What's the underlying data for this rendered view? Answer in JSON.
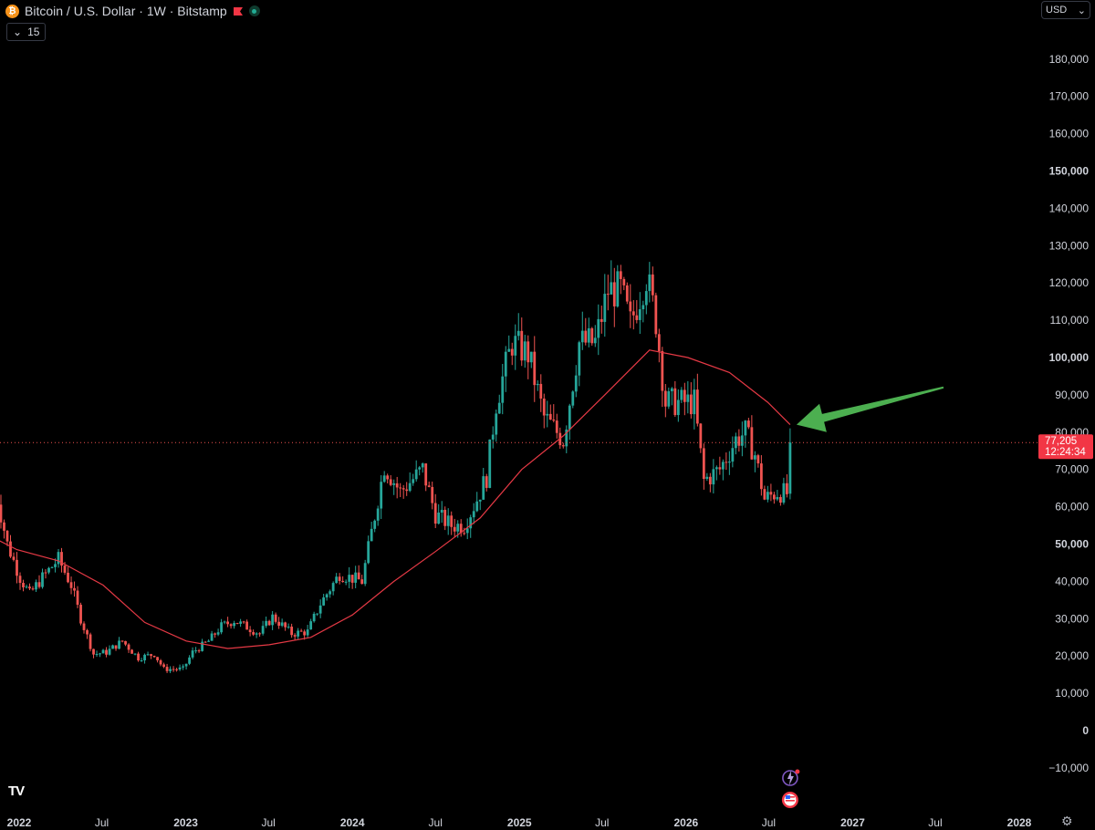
{
  "header": {
    "symbol_title": "Bitcoin / U.S. Dollar · 1W · Bitstamp",
    "icon": "bitcoin-icon",
    "icon_glyph": "₿",
    "flag_icon": "red-flag-icon",
    "status_icon": "market-status-dot-icon"
  },
  "indicator_toggle": {
    "icon": "chevron-down-icon",
    "glyph": "⌄",
    "value": "15"
  },
  "currency_selector": {
    "value": "USD",
    "icon": "chevron-down-icon",
    "glyph": "⌄"
  },
  "price_label": {
    "price": "77,205",
    "countdown": "12:24:34"
  },
  "logo": {
    "icon": "tradingview-logo-icon",
    "text": "TV"
  },
  "settings": {
    "icon": "gear-icon",
    "glyph": "⚙"
  },
  "colors": {
    "background": "#000000",
    "up_candle": "#26a69a",
    "down_candle": "#ef5350",
    "moving_average": "#e53945",
    "price_line": "#ef5350",
    "price_label_bg": "#f23645",
    "axis_text": "#d1d4dc",
    "arrow": "#4caf50",
    "bitcoin_icon": "#f7931a"
  },
  "chart_data": {
    "type": "candlestick",
    "ylim": [
      -15000,
      190000
    ],
    "y_ticks": [
      {
        "value": 180000,
        "label": "180,000"
      },
      {
        "value": 170000,
        "label": "170,000"
      },
      {
        "value": 160000,
        "label": "160,000"
      },
      {
        "value": 150000,
        "label": "150,000",
        "bold": true
      },
      {
        "value": 140000,
        "label": "140,000"
      },
      {
        "value": 130000,
        "label": "130,000"
      },
      {
        "value": 120000,
        "label": "120,000"
      },
      {
        "value": 110000,
        "label": "110,000"
      },
      {
        "value": 100000,
        "label": "100,000",
        "bold": true
      },
      {
        "value": 90000,
        "label": "90,000"
      },
      {
        "value": 80000,
        "label": "80,000"
      },
      {
        "value": 70000,
        "label": "70,000"
      },
      {
        "value": 60000,
        "label": "60,000"
      },
      {
        "value": 50000,
        "label": "50,000",
        "bold": true
      },
      {
        "value": 40000,
        "label": "40,000"
      },
      {
        "value": 30000,
        "label": "30,000"
      },
      {
        "value": 20000,
        "label": "20,000"
      },
      {
        "value": 10000,
        "label": "10,000"
      },
      {
        "value": 0,
        "label": "0",
        "bold": true
      },
      {
        "value": -10000,
        "label": "−10,000"
      }
    ],
    "x_ticks": [
      {
        "date": "2022-01-01",
        "label": "2022",
        "bold": true
      },
      {
        "date": "2022-07-01",
        "label": "Jul"
      },
      {
        "date": "2023-01-01",
        "label": "2023",
        "bold": true
      },
      {
        "date": "2023-07-01",
        "label": "Jul"
      },
      {
        "date": "2024-01-01",
        "label": "2024",
        "bold": true
      },
      {
        "date": "2024-07-01",
        "label": "Jul"
      },
      {
        "date": "2025-01-01",
        "label": "2025",
        "bold": true
      },
      {
        "date": "2025-07-01",
        "label": "Jul"
      },
      {
        "date": "2026-01-01",
        "label": "2026",
        "bold": true
      },
      {
        "date": "2026-07-01",
        "label": "Jul"
      },
      {
        "date": "2027-01-01",
        "label": "2027",
        "bold": true
      },
      {
        "date": "2027-07-01",
        "label": "Jul"
      },
      {
        "date": "2028-01-01",
        "label": "2028",
        "bold": true
      }
    ],
    "last_price": 77205,
    "price_path": [
      [
        "2021-11-08",
        66000
      ],
      [
        "2021-12-06",
        50000
      ],
      [
        "2022-01-03",
        41000
      ],
      [
        "2022-01-24",
        36500
      ],
      [
        "2022-02-14",
        40000
      ],
      [
        "2022-03-28",
        46000
      ],
      [
        "2022-04-25",
        39000
      ],
      [
        "2022-05-16",
        30000
      ],
      [
        "2022-06-13",
        20500
      ],
      [
        "2022-07-11",
        21000
      ],
      [
        "2022-08-15",
        24000
      ],
      [
        "2022-09-19",
        19500
      ],
      [
        "2022-10-24",
        20500
      ],
      [
        "2022-11-14",
        16500
      ],
      [
        "2022-12-26",
        16500
      ],
      [
        "2023-01-16",
        21000
      ],
      [
        "2023-02-20",
        24000
      ],
      [
        "2023-03-20",
        28000
      ],
      [
        "2023-04-17",
        29500
      ],
      [
        "2023-06-12",
        26000
      ],
      [
        "2023-07-10",
        30500
      ],
      [
        "2023-08-21",
        26000
      ],
      [
        "2023-09-25",
        26500
      ],
      [
        "2023-10-23",
        34000
      ],
      [
        "2023-12-04",
        42000
      ],
      [
        "2024-01-22",
        40000
      ],
      [
        "2024-02-26",
        62000
      ],
      [
        "2024-03-11",
        71000
      ],
      [
        "2024-04-15",
        64000
      ],
      [
        "2024-06-03",
        70000
      ],
      [
        "2024-07-01",
        58000
      ],
      [
        "2024-08-05",
        55000
      ],
      [
        "2024-09-02",
        55000
      ],
      [
        "2024-09-30",
        62000
      ],
      [
        "2024-10-21",
        68000
      ],
      [
        "2024-11-11",
        88000
      ],
      [
        "2024-12-16",
        104000
      ],
      [
        "2025-01-20",
        101000
      ],
      [
        "2025-02-24",
        84000
      ],
      [
        "2025-04-07",
        78000
      ],
      [
        "2025-05-12",
        104000
      ],
      [
        "2025-06-16",
        104000
      ],
      [
        "2025-07-14",
        118000
      ],
      [
        "2025-08-11",
        118000
      ],
      [
        "2025-09-01",
        109000
      ],
      [
        "2025-10-06",
        122000
      ],
      [
        "2025-10-27",
        110000
      ],
      [
        "2025-11-17",
        88000
      ],
      [
        "2025-12-22",
        88000
      ],
      [
        "2026-01-19",
        88000
      ],
      [
        "2026-02-09",
        67000
      ],
      [
        "2026-03-16",
        70000
      ],
      [
        "2026-04-20",
        78000
      ],
      [
        "2026-05-11",
        80000
      ],
      [
        "2026-06-01",
        74000
      ],
      [
        "2026-06-22",
        62000
      ],
      [
        "2026-07-20",
        64000
      ],
      [
        "2026-08-10",
        63500
      ],
      [
        "2026-08-17",
        77205
      ]
    ],
    "moving_average": [
      [
        "2021-11-01",
        52000
      ],
      [
        "2021-12-27",
        48500
      ],
      [
        "2022-03-28",
        45500
      ],
      [
        "2022-07-04",
        39000
      ],
      [
        "2022-10-03",
        29000
      ],
      [
        "2023-01-02",
        24000
      ],
      [
        "2023-04-03",
        22000
      ],
      [
        "2023-07-03",
        23000
      ],
      [
        "2023-10-02",
        25000
      ],
      [
        "2024-01-01",
        31000
      ],
      [
        "2024-04-01",
        40000
      ],
      [
        "2024-07-01",
        48000
      ],
      [
        "2024-10-07",
        57000
      ],
      [
        "2025-01-06",
        70000
      ],
      [
        "2025-04-07",
        79000
      ],
      [
        "2025-07-07",
        90000
      ],
      [
        "2025-10-13",
        102000
      ],
      [
        "2026-01-05",
        100000
      ],
      [
        "2026-04-06",
        96000
      ],
      [
        "2026-06-29",
        88000
      ],
      [
        "2026-08-17",
        82000
      ]
    ],
    "annotation": {
      "type": "arrow",
      "from": [
        "2027-07-19",
        92000
      ],
      "to": [
        "2026-08-31",
        82000
      ]
    }
  }
}
